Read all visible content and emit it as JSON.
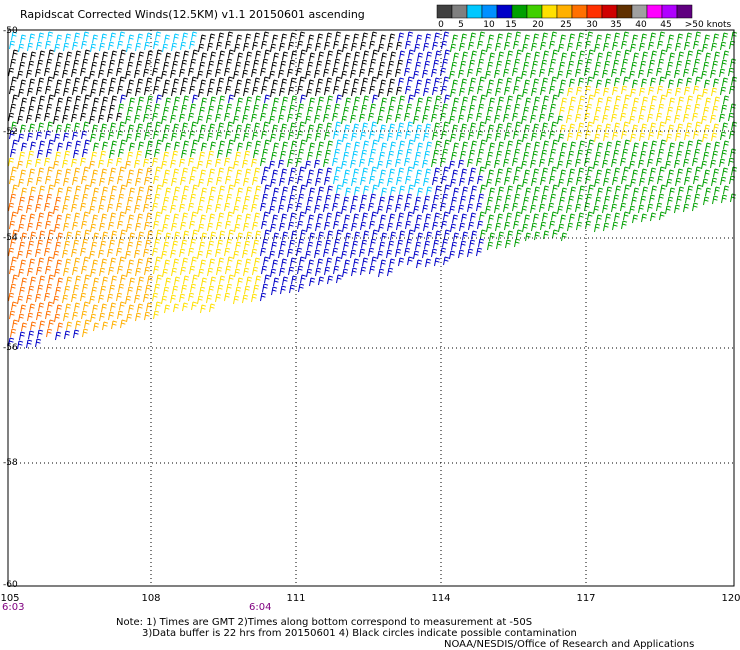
{
  "header": {
    "title": "Rapidscat Corrected Winds(12.5KM) v1.1 20150601 ascending"
  },
  "colorbar": {
    "colors": [
      "#404040",
      "#808080",
      "#00c8ff",
      "#0090ff",
      "#0000c8",
      "#00a000",
      "#40d000",
      "#ffe000",
      "#ffb000",
      "#ff7000",
      "#ff3000",
      "#d00000",
      "#603000",
      "#a0a0a0",
      "#ff00ff",
      "#b000ff",
      "#600080"
    ],
    "labels": [
      "0",
      "5",
      "10",
      "15",
      "20",
      "25",
      "30",
      "35",
      "40",
      "45",
      ">50 knots"
    ]
  },
  "map": {
    "lon_ticks": [
      "105",
      "108",
      "111",
      "114",
      "117",
      "120"
    ],
    "lat_ticks": [
      "-50",
      "-52",
      "-54",
      "-56",
      "-58",
      "-60"
    ],
    "grid_color": "#000000"
  },
  "times": {
    "start": "6:03",
    "mid": "6:04"
  },
  "notes": {
    "line1": "Note: 1) Times are GMT 2)Times along bottom correspond to measurement at -50S",
    "line2": "3)Data buffer is 22 hrs from 20150601 4) Black circles indicate possible contamination",
    "line3": "NOAA/NESDIS/Office of Research and Applications"
  },
  "wind_speed_colors": {
    "calm": "#000000",
    "light": "#00c8ff",
    "moderate_low": "#0000c8",
    "moderate": "#00a000",
    "fresh": "#ffe000",
    "strong": "#ffb000",
    "gale": "#ff7000"
  }
}
